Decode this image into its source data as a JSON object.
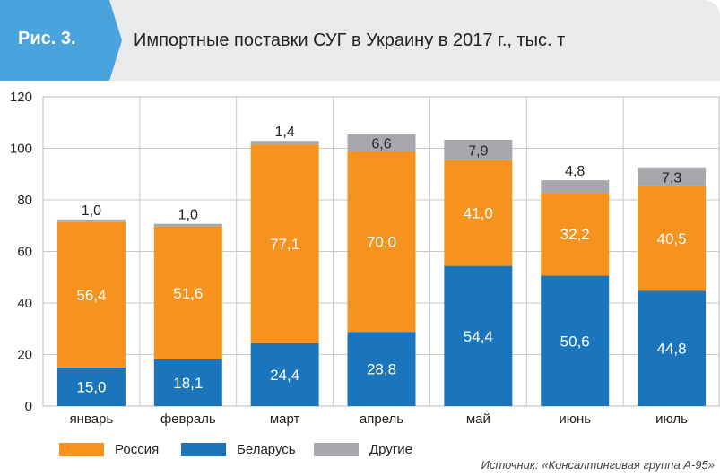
{
  "header": {
    "fig_label": "Рис. 3.",
    "title": "Импортные поставки СУГ в Украину в 2017 г., тыс. т"
  },
  "colors": {
    "russia": "#f6921e",
    "belarus": "#1b75bc",
    "other": "#a6a8ab",
    "badge": "#4aa3dc"
  },
  "chart_data": {
    "type": "bar",
    "stacked": true,
    "title": "Импортные поставки СУГ в Украину в 2017 г., тыс. т",
    "categories": [
      "январь",
      "февраль",
      "март",
      "апрель",
      "май",
      "июнь",
      "июль"
    ],
    "series": [
      {
        "name": "Беларусь",
        "values": [
          15.0,
          18.1,
          24.4,
          28.8,
          54.4,
          50.6,
          44.8
        ]
      },
      {
        "name": "Россия",
        "values": [
          56.4,
          51.6,
          77.1,
          70.0,
          41.0,
          32.2,
          40.5
        ]
      },
      {
        "name": "Другие",
        "values": [
          1.0,
          1.0,
          1.4,
          6.6,
          7.9,
          4.8,
          7.3
        ]
      }
    ],
    "value_labels": {
      "Беларусь": [
        "15,0",
        "18,1",
        "24,4",
        "28,8",
        "54,4",
        "50,6",
        "44,8"
      ],
      "Россия": [
        "56,4",
        "51,6",
        "77,1",
        "70,0",
        "41,0",
        "32,2",
        "40,5"
      ],
      "Другие": [
        "1,0",
        "1,0",
        "1,4",
        "6,6",
        "7,9",
        "4,8",
        "7,3"
      ]
    },
    "ylim": [
      0,
      120
    ],
    "yticks": [
      0,
      20,
      40,
      60,
      80,
      100,
      120
    ],
    "grid": true,
    "legend_position": "bottom-left"
  },
  "legend": {
    "items": [
      {
        "label": "Россия",
        "color": "#f6921e"
      },
      {
        "label": "Беларусь",
        "color": "#1b75bc"
      },
      {
        "label": "Другие",
        "color": "#a6a8ab"
      }
    ]
  },
  "source": "Источник: «Консалтинговая группа А-95»"
}
